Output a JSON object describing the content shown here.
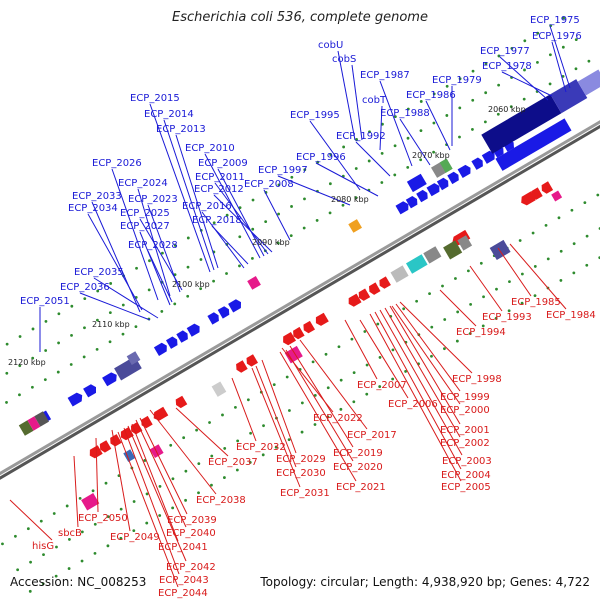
{
  "title": "Escherichia coli 536, complete genome",
  "accession": "Accession: NC_008253",
  "summary": "Topology: circular; Length: 4,938,920 bp; Genes: 4,722",
  "ticks": [
    "2060 kbp",
    "2070 kbp",
    "2080 kbp",
    "2090 kbp",
    "2100 kbp",
    "2110 kbp",
    "2120 kbp"
  ],
  "labels_blue": [
    "ECP_1975",
    "ECP_1976",
    "ECP_1977",
    "ECP_1978",
    "cobU",
    "cobS",
    "ECP_1987",
    "ECP_1979",
    "cobT",
    "ECP_1986",
    "ECP_1988",
    "ECP_1995",
    "ECP_1992",
    "ECP_2015",
    "ECP_2014",
    "ECP_2013",
    "ECP_2010",
    "ECP_2009",
    "ECP_2011",
    "ECP_2012",
    "ECP_2008",
    "ECP_1996",
    "ECP_1997",
    "ECP_2026",
    "ECP_2024",
    "ECP_2033",
    "ECP_2023",
    "ECP_2034",
    "ECP_2025",
    "ECP_2016",
    "ECP_2018",
    "ECP_2027",
    "ECP_2028",
    "ECP_2035",
    "ECP_2036",
    "ECP_2051"
  ],
  "labels_red": [
    "ECP_1985",
    "ECP_1984",
    "ECP_1993",
    "ECP_1994",
    "ECP_1998",
    "ECP_1999",
    "ECP_2006",
    "ECP_2000",
    "ECP_2007",
    "ECP_2001",
    "ECP_2002",
    "ECP_2003",
    "ECP_2004",
    "ECP_2005",
    "ECP_2017",
    "ECP_2022",
    "ECP_2019",
    "ECP_2020",
    "ECP_2021",
    "ECP_2032",
    "ECP_2029",
    "ECP_2037",
    "ECP_2030",
    "ECP_2031",
    "ECP_2038",
    "ECP_2039",
    "ECP_2050",
    "ECP_2040",
    "ECP_2049",
    "ECP_2041",
    "ECP_2042",
    "ECP_2043",
    "ECP_2044",
    "sbcB",
    "hisG"
  ]
}
